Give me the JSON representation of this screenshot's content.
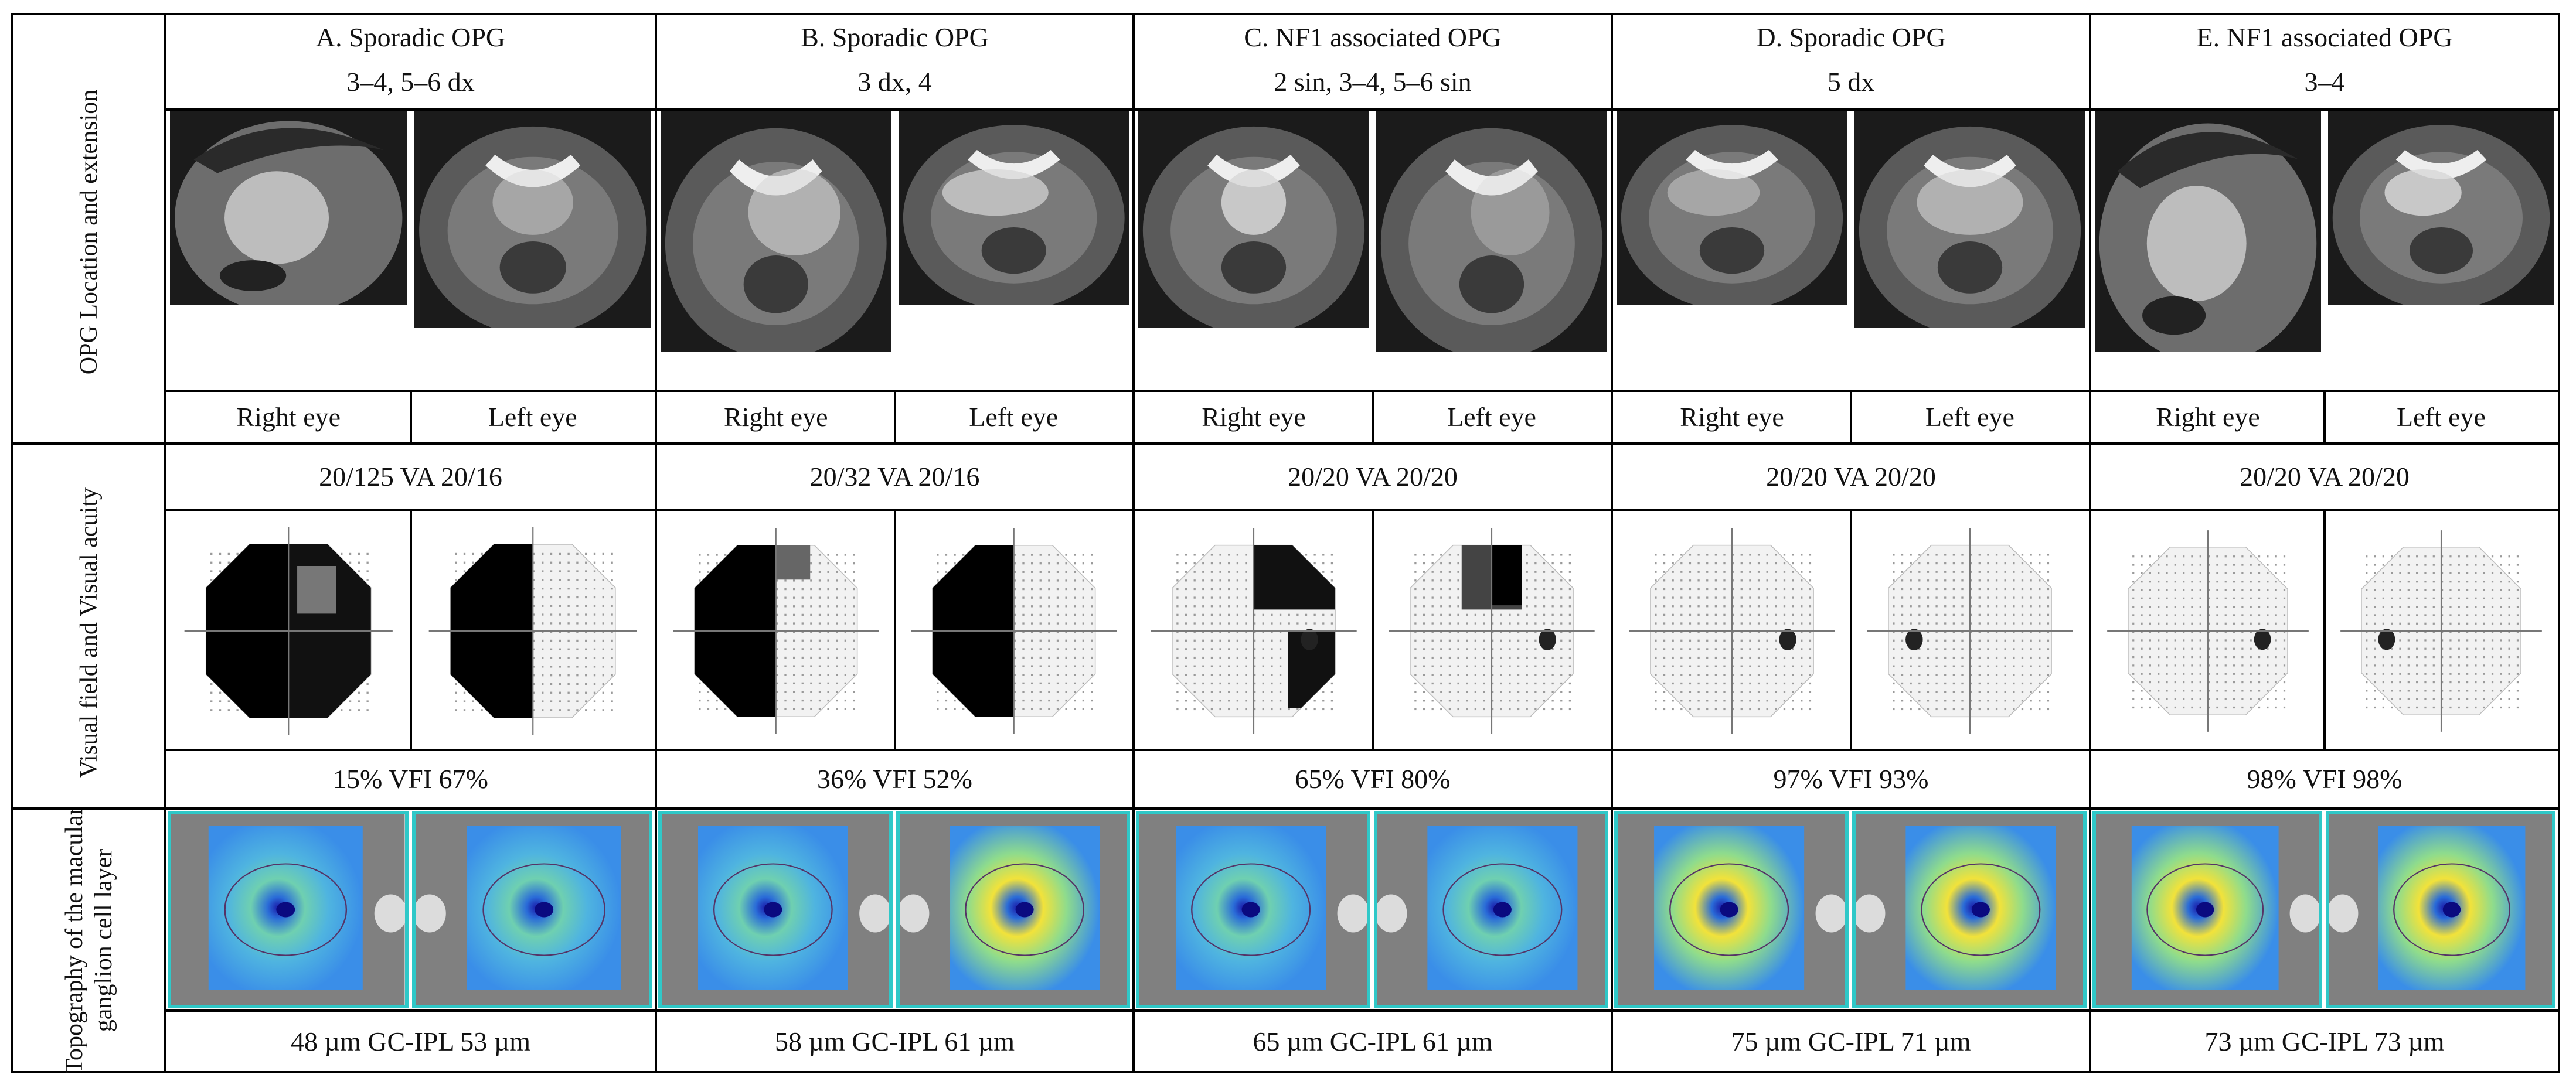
{
  "row_labels": {
    "location": "OPG Location and extension",
    "visual": "Visual field and Visual acuity",
    "topography": "Topography of the macular ganglion cell layer"
  },
  "eye_labels": {
    "right": "Right eye",
    "left": "Left eye"
  },
  "cases": [
    {
      "title": "A. Sporadic OPG",
      "extension": "3–4, 5–6 dx",
      "va": "20/125 VA 20/16",
      "vfi": "15% VFI 67%",
      "gcipl": "48 µm GC-IPL 53 µm"
    },
    {
      "title": "B. Sporadic OPG",
      "extension": "3 dx, 4",
      "va": "20/32 VA 20/16",
      "vfi": "36% VFI 52%",
      "gcipl": "58 µm GC-IPL 61 µm"
    },
    {
      "title": "C. NF1 associated OPG",
      "extension": "2 sin, 3–4, 5–6 sin",
      "va": "20/20 VA 20/20",
      "vfi": "65% VFI 80%",
      "gcipl": "65 µm GC-IPL 61 µm"
    },
    {
      "title": "D. Sporadic OPG",
      "extension": "5 dx",
      "va": "20/20 VA 20/20",
      "vfi": "97% VFI 93%",
      "gcipl": "75 µm GC-IPL 71 µm"
    },
    {
      "title": "E. NF1 associated OPG",
      "extension": "3–4",
      "va": "20/20 VA 20/20",
      "vfi": "98% VFI 98%",
      "gcipl": "73 µm GC-IPL 73 µm"
    }
  ],
  "colors": {
    "border": "#000000",
    "oct_frame": "#2fc8c8"
  }
}
